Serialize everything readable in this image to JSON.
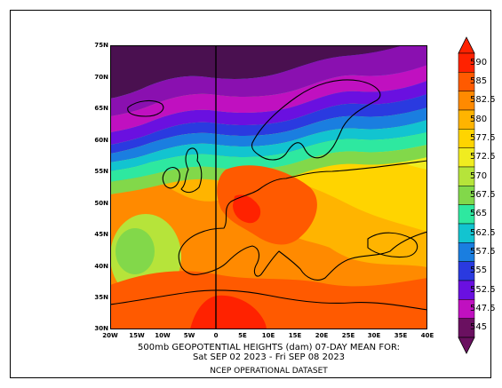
{
  "map": {
    "lat_labels": [
      "75N",
      "70N",
      "65N",
      "60N",
      "55N",
      "50N",
      "45N",
      "40N",
      "35N",
      "30N"
    ],
    "lon_labels": [
      "20W",
      "15W",
      "10W",
      "5W",
      "0",
      "5E",
      "10E",
      "15E",
      "20E",
      "25E",
      "30E",
      "35E",
      "40E"
    ],
    "lat_range": [
      30,
      75
    ],
    "lon_range": [
      -20,
      40
    ]
  },
  "caption": {
    "line1": "500mb GEOPOTENTIAL HEIGHTS (dam)   07-DAY MEAN FOR:",
    "line2": "Sat SEP 02 2023 - Fri SEP 08 2023",
    "line3": "NCEP OPERATIONAL DATASET"
  },
  "colorbar": {
    "levels": [
      {
        "label": "590",
        "color": "#ff2200"
      },
      {
        "label": "585",
        "color": "#ff5a00"
      },
      {
        "label": "582.5",
        "color": "#ff8a00"
      },
      {
        "label": "580",
        "color": "#ffb400"
      },
      {
        "label": "577.5",
        "color": "#ffd400"
      },
      {
        "label": "572.5",
        "color": "#f0ec20"
      },
      {
        "label": "570",
        "color": "#b6e43a"
      },
      {
        "label": "567.5",
        "color": "#82d84a"
      },
      {
        "label": "565",
        "color": "#2ee8a0"
      },
      {
        "label": "562.5",
        "color": "#12c4d0"
      },
      {
        "label": "557.5",
        "color": "#1a7ee0"
      },
      {
        "label": "555",
        "color": "#2a3ae0"
      },
      {
        "label": "552.5",
        "color": "#6a10e0"
      },
      {
        "label": "547.5",
        "color": "#c010c0"
      },
      {
        "label": "545",
        "color": "#6a1060"
      }
    ]
  },
  "contour_colors": {
    "c1": "#4a1050",
    "c2": "#8a10b0",
    "c3": "#c010c0",
    "c4": "#6a10e0",
    "c5": "#2a3ae0",
    "c6": "#1a7ee0",
    "c7": "#12c4d0",
    "c8": "#2ee8a0",
    "c9": "#82d84a",
    "c10": "#b6e43a",
    "c11": "#f0ec20",
    "c12": "#ffd400",
    "c13": "#ffb400",
    "c14": "#ff8a00",
    "c15": "#ff5a00",
    "c16": "#ff2200"
  }
}
